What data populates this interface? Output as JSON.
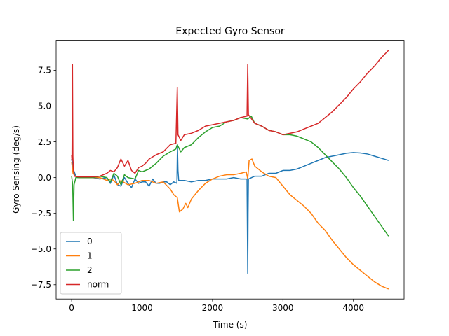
{
  "chart_data": {
    "type": "line",
    "title": "Expected Gyro Sensor",
    "xlabel": "Time (s)",
    "ylabel": "Gyro Sensing (deg/s)",
    "xlim": [
      -220,
      4720
    ],
    "ylim": [
      -8.5,
      9.6
    ],
    "xticks": [
      0,
      1000,
      2000,
      3000,
      4000
    ],
    "yticks": [
      -7.5,
      -5.0,
      -2.5,
      0.0,
      2.5,
      5.0,
      7.5
    ],
    "xtick_labels": [
      "0",
      "1000",
      "2000",
      "3000",
      "4000"
    ],
    "ytick_labels": [
      "−7.5",
      "−5.0",
      "−2.5",
      "0.0",
      "2.5",
      "5.0",
      "7.5"
    ],
    "grid": false,
    "legend_position": "lower-left",
    "series": [
      {
        "name": "0",
        "color": "#1f77b4",
        "points": [
          [
            0,
            1.3
          ],
          [
            15,
            0.9
          ],
          [
            30,
            0.5
          ],
          [
            60,
            0.1
          ],
          [
            100,
            0.0
          ],
          [
            300,
            0.0
          ],
          [
            400,
            -0.1
          ],
          [
            500,
            0.0
          ],
          [
            550,
            -0.4
          ],
          [
            600,
            0.2
          ],
          [
            650,
            -0.5
          ],
          [
            700,
            -0.6
          ],
          [
            750,
            0.0
          ],
          [
            800,
            -0.4
          ],
          [
            850,
            -0.7
          ],
          [
            900,
            -0.1
          ],
          [
            950,
            -0.4
          ],
          [
            1000,
            -0.3
          ],
          [
            1050,
            -0.3
          ],
          [
            1100,
            -0.6
          ],
          [
            1150,
            -0.1
          ],
          [
            1200,
            -0.4
          ],
          [
            1250,
            -0.4
          ],
          [
            1300,
            -0.3
          ],
          [
            1350,
            -0.3
          ],
          [
            1400,
            -0.5
          ],
          [
            1450,
            -0.3
          ],
          [
            1495,
            -0.4
          ],
          [
            1502,
            2.3
          ],
          [
            1510,
            0.5
          ],
          [
            1520,
            -0.2
          ],
          [
            1600,
            -0.2
          ],
          [
            1700,
            -0.3
          ],
          [
            1800,
            -0.2
          ],
          [
            1900,
            -0.2
          ],
          [
            2000,
            -0.1
          ],
          [
            2100,
            -0.1
          ],
          [
            2200,
            -0.1
          ],
          [
            2300,
            0.0
          ],
          [
            2400,
            -0.1
          ],
          [
            2490,
            -0.1
          ],
          [
            2500,
            -6.7
          ],
          [
            2505,
            -2.5
          ],
          [
            2510,
            -0.1
          ],
          [
            2600,
            0.1
          ],
          [
            2700,
            0.1
          ],
          [
            2800,
            0.3
          ],
          [
            2900,
            0.3
          ],
          [
            3000,
            0.5
          ],
          [
            3100,
            0.5
          ],
          [
            3200,
            0.6
          ],
          [
            3300,
            0.8
          ],
          [
            3400,
            1.0
          ],
          [
            3500,
            1.2
          ],
          [
            3600,
            1.4
          ],
          [
            3700,
            1.5
          ],
          [
            3800,
            1.6
          ],
          [
            3900,
            1.7
          ],
          [
            4000,
            1.75
          ],
          [
            4100,
            1.72
          ],
          [
            4200,
            1.65
          ],
          [
            4300,
            1.5
          ],
          [
            4400,
            1.35
          ],
          [
            4500,
            1.2
          ]
        ]
      },
      {
        "name": "1",
        "color": "#ff7f0e",
        "points": [
          [
            0,
            1.1
          ],
          [
            20,
            0.3
          ],
          [
            50,
            0.1
          ],
          [
            100,
            0.0
          ],
          [
            300,
            0.0
          ],
          [
            400,
            0.0
          ],
          [
            500,
            -0.2
          ],
          [
            550,
            -0.1
          ],
          [
            600,
            -0.2
          ],
          [
            650,
            -0.5
          ],
          [
            700,
            -0.2
          ],
          [
            800,
            -0.5
          ],
          [
            900,
            -0.4
          ],
          [
            1000,
            -0.2
          ],
          [
            1100,
            -0.2
          ],
          [
            1200,
            -0.4
          ],
          [
            1300,
            -0.3
          ],
          [
            1400,
            -0.8
          ],
          [
            1450,
            -1.2
          ],
          [
            1500,
            -1.4
          ],
          [
            1530,
            -2.4
          ],
          [
            1580,
            -2.2
          ],
          [
            1620,
            -1.8
          ],
          [
            1650,
            -2.1
          ],
          [
            1700,
            -1.5
          ],
          [
            1800,
            -0.9
          ],
          [
            1900,
            -0.4
          ],
          [
            2000,
            -0.1
          ],
          [
            2100,
            0.1
          ],
          [
            2200,
            0.2
          ],
          [
            2300,
            0.2
          ],
          [
            2400,
            0.3
          ],
          [
            2480,
            0.4
          ],
          [
            2500,
            -0.1
          ],
          [
            2520,
            1.2
          ],
          [
            2560,
            1.3
          ],
          [
            2600,
            0.8
          ],
          [
            2700,
            0.4
          ],
          [
            2800,
            0.1
          ],
          [
            2900,
            0.0
          ],
          [
            3000,
            -0.6
          ],
          [
            3100,
            -1.2
          ],
          [
            3200,
            -1.6
          ],
          [
            3300,
            -2.0
          ],
          [
            3400,
            -2.5
          ],
          [
            3500,
            -3.2
          ],
          [
            3600,
            -3.7
          ],
          [
            3700,
            -4.4
          ],
          [
            3800,
            -5.0
          ],
          [
            3900,
            -5.6
          ],
          [
            4000,
            -6.1
          ],
          [
            4100,
            -6.5
          ],
          [
            4200,
            -6.9
          ],
          [
            4300,
            -7.3
          ],
          [
            4400,
            -7.6
          ],
          [
            4500,
            -7.8
          ]
        ]
      },
      {
        "name": "2",
        "color": "#2ca02c",
        "points": [
          [
            0,
            0.1
          ],
          [
            15,
            -0.5
          ],
          [
            25,
            -3.0
          ],
          [
            35,
            -0.5
          ],
          [
            60,
            0.0
          ],
          [
            100,
            0.0
          ],
          [
            300,
            0.0
          ],
          [
            400,
            0.1
          ],
          [
            500,
            0.0
          ],
          [
            550,
            -0.3
          ],
          [
            600,
            0.3
          ],
          [
            650,
            0.1
          ],
          [
            700,
            -0.5
          ],
          [
            750,
            0.2
          ],
          [
            800,
            0.0
          ],
          [
            900,
            -0.1
          ],
          [
            950,
            0.5
          ],
          [
            1000,
            0.4
          ],
          [
            1100,
            0.6
          ],
          [
            1200,
            1.0
          ],
          [
            1300,
            1.5
          ],
          [
            1400,
            1.8
          ],
          [
            1480,
            2.0
          ],
          [
            1500,
            2.3
          ],
          [
            1550,
            1.8
          ],
          [
            1600,
            2.1
          ],
          [
            1700,
            2.3
          ],
          [
            1800,
            2.8
          ],
          [
            1900,
            3.2
          ],
          [
            2000,
            3.5
          ],
          [
            2100,
            3.6
          ],
          [
            2200,
            3.9
          ],
          [
            2300,
            4.0
          ],
          [
            2400,
            4.2
          ],
          [
            2500,
            4.1
          ],
          [
            2550,
            4.3
          ],
          [
            2600,
            3.8
          ],
          [
            2700,
            3.6
          ],
          [
            2800,
            3.3
          ],
          [
            2900,
            3.2
          ],
          [
            3000,
            3.0
          ],
          [
            3100,
            3.0
          ],
          [
            3200,
            2.9
          ],
          [
            3300,
            2.7
          ],
          [
            3400,
            2.5
          ],
          [
            3500,
            2.1
          ],
          [
            3600,
            1.6
          ],
          [
            3700,
            1.1
          ],
          [
            3800,
            0.6
          ],
          [
            3900,
            0.0
          ],
          [
            4000,
            -0.7
          ],
          [
            4100,
            -1.3
          ],
          [
            4200,
            -2.0
          ],
          [
            4300,
            -2.7
          ],
          [
            4400,
            -3.4
          ],
          [
            4500,
            -4.1
          ]
        ]
      },
      {
        "name": "norm",
        "color": "#d62728",
        "points": [
          [
            0,
            1.6
          ],
          [
            5,
            1.2
          ],
          [
            12,
            7.9
          ],
          [
            18,
            1.5
          ],
          [
            25,
            0.6
          ],
          [
            40,
            0.1
          ],
          [
            100,
            0.05
          ],
          [
            300,
            0.05
          ],
          [
            400,
            0.1
          ],
          [
            500,
            0.3
          ],
          [
            550,
            0.5
          ],
          [
            600,
            0.4
          ],
          [
            650,
            0.7
          ],
          [
            700,
            1.3
          ],
          [
            750,
            0.8
          ],
          [
            800,
            1.2
          ],
          [
            850,
            0.5
          ],
          [
            900,
            0.3
          ],
          [
            950,
            0.7
          ],
          [
            1000,
            0.8
          ],
          [
            1050,
            1.0
          ],
          [
            1100,
            1.3
          ],
          [
            1200,
            1.6
          ],
          [
            1300,
            1.8
          ],
          [
            1400,
            2.3
          ],
          [
            1480,
            2.4
          ],
          [
            1500,
            6.3
          ],
          [
            1510,
            3.0
          ],
          [
            1550,
            2.6
          ],
          [
            1600,
            3.0
          ],
          [
            1700,
            3.1
          ],
          [
            1800,
            3.3
          ],
          [
            1900,
            3.6
          ],
          [
            2000,
            3.7
          ],
          [
            2100,
            3.8
          ],
          [
            2200,
            3.9
          ],
          [
            2300,
            4.0
          ],
          [
            2400,
            4.2
          ],
          [
            2490,
            4.3
          ],
          [
            2500,
            7.9
          ],
          [
            2510,
            4.4
          ],
          [
            2600,
            3.8
          ],
          [
            2700,
            3.6
          ],
          [
            2800,
            3.3
          ],
          [
            2900,
            3.2
          ],
          [
            3000,
            3.0
          ],
          [
            3100,
            3.1
          ],
          [
            3200,
            3.2
          ],
          [
            3300,
            3.4
          ],
          [
            3400,
            3.6
          ],
          [
            3500,
            3.8
          ],
          [
            3600,
            4.2
          ],
          [
            3700,
            4.6
          ],
          [
            3800,
            5.1
          ],
          [
            3900,
            5.6
          ],
          [
            4000,
            6.2
          ],
          [
            4100,
            6.7
          ],
          [
            4200,
            7.3
          ],
          [
            4300,
            7.8
          ],
          [
            4400,
            8.4
          ],
          [
            4500,
            8.9
          ]
        ]
      }
    ]
  }
}
